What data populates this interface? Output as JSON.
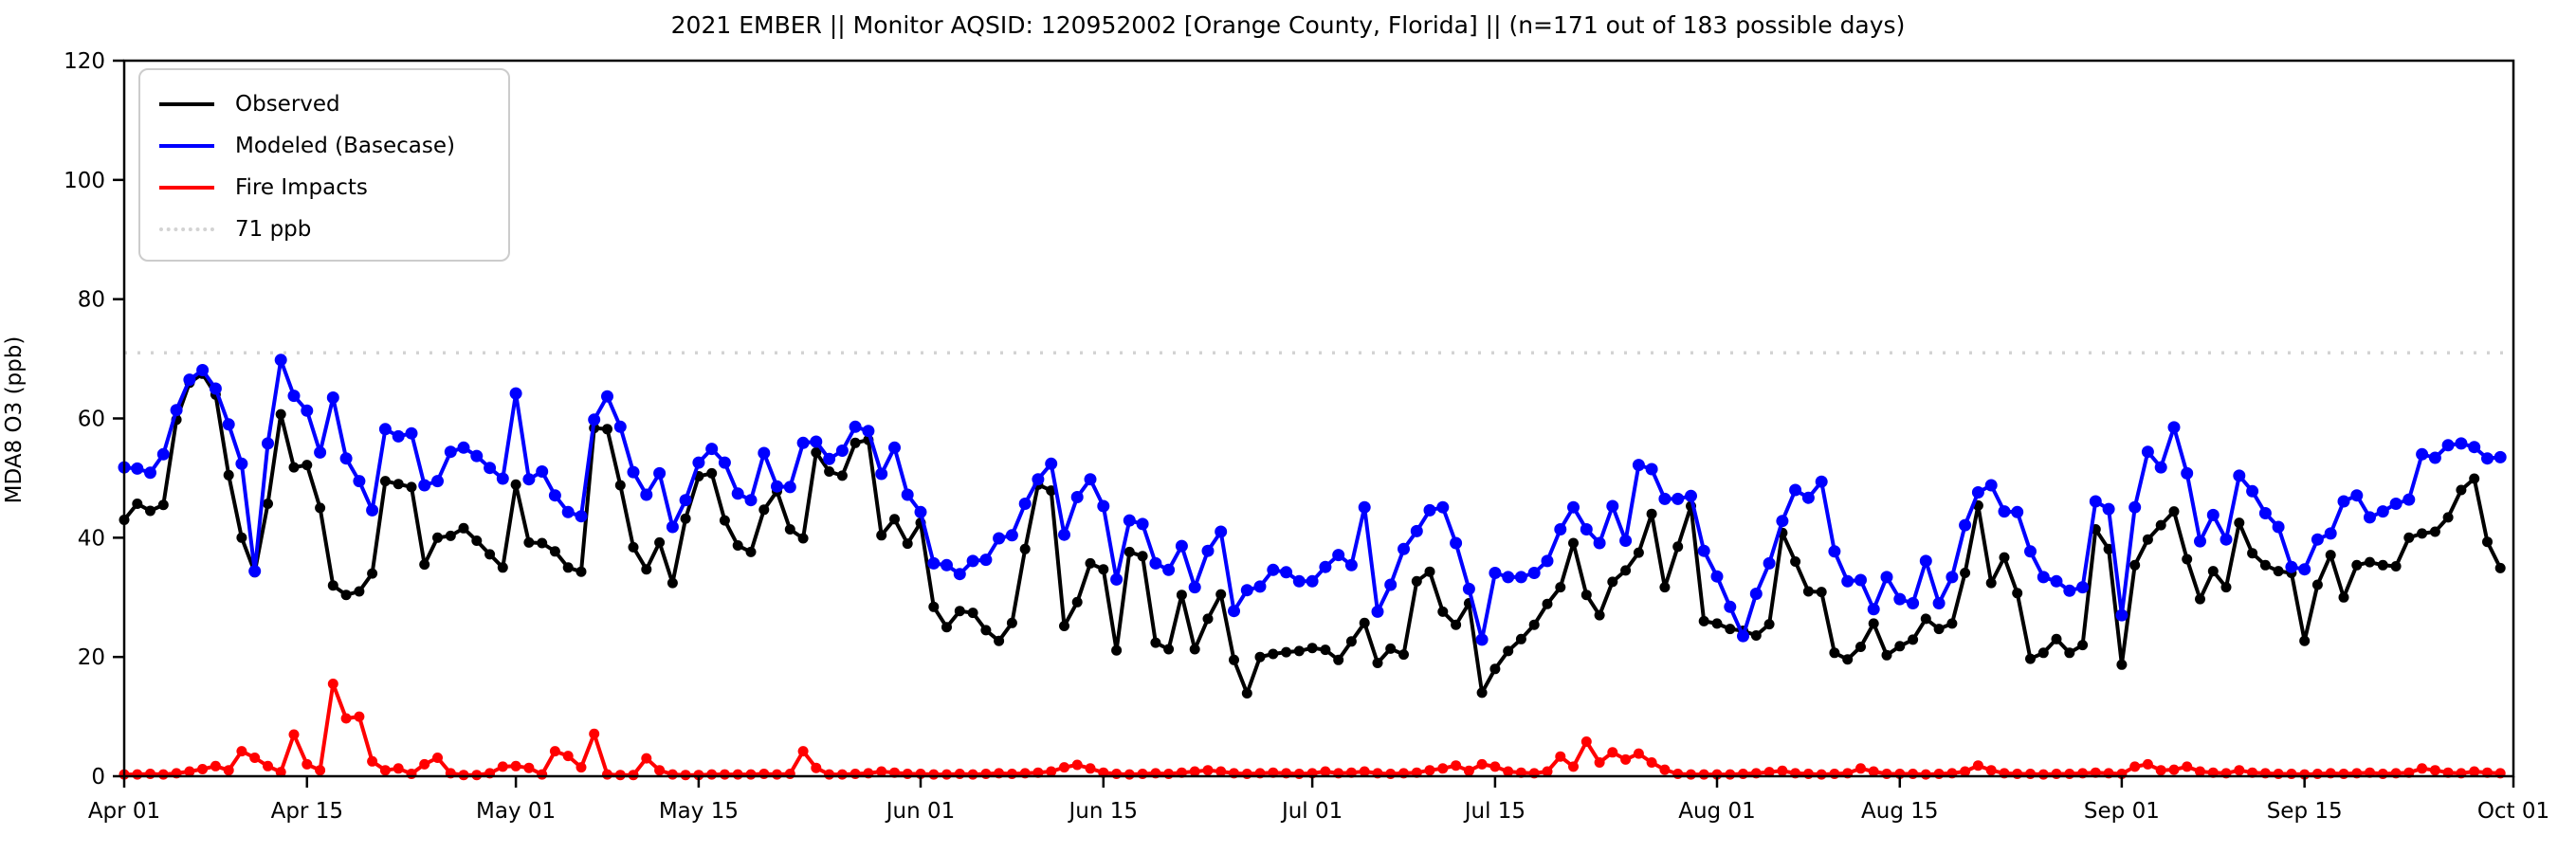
{
  "title": "2021 EMBER || Monitor AQSID: 120952002 [Orange County, Florida] || (n=171 out of 183 possible days)",
  "chart_data": {
    "type": "line",
    "title": "2021 EMBER || Monitor AQSID: 120952002 [Orange County, Florida] || (n=171 out of 183 possible days)",
    "xlabel": "",
    "ylabel": "MDA8 O3 (ppb)",
    "ylim": [
      0,
      120
    ],
    "yticks": [
      0,
      20,
      40,
      60,
      80,
      100,
      120
    ],
    "x_max": 183,
    "x_start_label": "Apr 01",
    "x_end_label": "Oct 01",
    "xtick_days": [
      0,
      14,
      30,
      44,
      61,
      75,
      91,
      105,
      122,
      136,
      153,
      167,
      183
    ],
    "xtick_labels": [
      "Apr 01",
      "Apr 15",
      "May 01",
      "May 15",
      "Jun 01",
      "Jun 15",
      "Jul 01",
      "Jul 15",
      "Aug 01",
      "Aug 15",
      "Sep 01",
      "Sep 15",
      "Oct 01"
    ],
    "grid": false,
    "reference_line": {
      "label": "71 ppb",
      "value": 71,
      "color": "#d3d3d3",
      "style": "dotted"
    },
    "legend": {
      "position": "upper-left",
      "entries": [
        {
          "label": "Observed",
          "color": "#000000",
          "style": "solid"
        },
        {
          "label": "Modeled (Basecase)",
          "color": "#0000ff",
          "style": "solid"
        },
        {
          "label": "Fire Impacts",
          "color": "#ff0000",
          "style": "solid"
        },
        {
          "label": "71 ppb",
          "color": "#d3d3d3",
          "style": "dotted"
        }
      ]
    },
    "series": [
      {
        "name": "Observed",
        "color": "#000000",
        "marker": "circle",
        "marker_r": 5.5,
        "values": [
          43.0,
          45.7,
          44.5,
          45.5,
          59.8,
          66.0,
          67.5,
          64.0,
          50.5,
          40.0,
          34.2,
          45.7,
          60.7,
          51.8,
          52.2,
          45.0,
          32.0,
          30.4,
          31.0,
          34.0,
          49.5,
          49.0,
          48.5,
          35.5,
          40.0,
          40.3,
          41.6,
          39.5,
          37.2,
          35.0,
          48.9,
          39.2,
          39.1,
          37.7,
          35.0,
          34.3,
          58.4,
          58.2,
          48.8,
          38.4,
          34.7,
          39.2,
          32.4,
          43.2,
          50.3,
          50.8,
          42.9,
          38.7,
          37.6,
          44.7,
          47.8,
          41.4,
          39.9,
          54.3,
          51.1,
          50.4,
          55.9,
          56.4,
          40.4,
          43.1,
          39.0,
          42.5,
          28.4,
          25.0,
          27.7,
          27.4,
          24.5,
          22.7,
          25.7,
          38.1,
          48.9,
          47.9,
          25.2,
          29.2,
          35.7,
          34.7,
          21.1,
          37.6,
          36.9,
          22.4,
          21.3,
          30.4,
          21.3,
          26.4,
          30.5,
          19.5,
          13.9,
          20.0,
          20.5,
          20.8,
          21.0,
          21.5,
          21.2,
          19.5,
          22.6,
          25.7,
          19.0,
          21.4,
          20.4,
          32.7,
          34.3,
          27.6,
          25.4,
          29.0,
          14.0,
          18.0,
          21.0,
          23.0,
          25.4,
          28.9,
          31.7,
          39.1,
          30.4,
          27.0,
          32.6,
          34.5,
          37.5,
          44.0,
          31.7,
          38.5,
          45.3,
          26.0,
          25.6,
          24.7,
          24.4,
          23.6,
          25.5,
          40.8,
          36.0,
          31.0,
          30.9,
          20.7,
          19.6,
          21.7,
          25.6,
          20.3,
          21.8,
          22.9,
          26.4,
          24.7,
          25.6,
          34.1,
          45.4,
          32.4,
          36.7,
          30.7,
          19.7,
          20.7,
          23.0,
          20.7,
          22.0,
          41.4,
          38.1,
          18.7,
          35.4,
          39.7,
          42.1,
          44.4,
          36.4,
          29.7,
          34.4,
          31.7,
          42.5,
          37.4,
          35.4,
          34.4,
          34.1,
          22.7,
          32.1,
          37.1,
          30.0,
          35.4,
          35.9,
          35.4,
          35.2,
          40.0,
          40.7,
          41.0,
          43.4,
          48.0,
          49.9,
          39.3,
          34.9
        ]
      },
      {
        "name": "Modeled (Basecase)",
        "color": "#0000ff",
        "marker": "circle",
        "marker_r": 6.5,
        "values": [
          51.8,
          51.6,
          50.9,
          54.0,
          61.4,
          66.5,
          68.1,
          65.0,
          59.0,
          52.4,
          34.4,
          55.8,
          69.8,
          63.8,
          61.3,
          54.3,
          63.5,
          53.3,
          49.5,
          44.6,
          58.2,
          57.0,
          57.5,
          48.8,
          49.5,
          54.4,
          55.1,
          53.7,
          51.7,
          49.9,
          64.2,
          49.8,
          51.1,
          47.1,
          44.3,
          43.6,
          59.8,
          63.7,
          58.6,
          51.0,
          47.2,
          50.8,
          41.8,
          46.3,
          52.6,
          54.9,
          52.6,
          47.4,
          46.3,
          54.2,
          48.6,
          48.5,
          55.9,
          56.1,
          53.2,
          54.6,
          58.6,
          57.9,
          50.7,
          55.1,
          47.2,
          44.3,
          35.7,
          35.4,
          33.9,
          36.1,
          36.3,
          39.9,
          40.4,
          45.7,
          49.8,
          52.4,
          40.5,
          46.8,
          49.8,
          45.3,
          33.0,
          42.9,
          42.3,
          35.7,
          34.6,
          38.6,
          31.7,
          37.8,
          41.0,
          27.7,
          31.2,
          31.8,
          34.6,
          34.2,
          32.7,
          32.7,
          35.1,
          37.1,
          35.4,
          45.1,
          27.6,
          32.1,
          38.1,
          41.1,
          44.6,
          45.1,
          39.1,
          31.4,
          22.9,
          34.1,
          33.4,
          33.4,
          34.1,
          36.1,
          41.4,
          45.1,
          41.4,
          39.1,
          45.3,
          39.5,
          52.2,
          51.5,
          46.5,
          46.5,
          47.0,
          37.8,
          33.5,
          28.4,
          23.5,
          30.6,
          35.7,
          42.8,
          48.0,
          46.7,
          49.4,
          37.7,
          32.7,
          32.9,
          28.0,
          33.4,
          29.7,
          29.0,
          36.1,
          29.0,
          33.4,
          42.1,
          47.6,
          48.8,
          44.4,
          44.3,
          37.7,
          33.4,
          32.7,
          31.1,
          31.7,
          46.1,
          44.8,
          27.0,
          45.1,
          54.4,
          51.8,
          58.5,
          50.8,
          39.4,
          43.8,
          39.7,
          50.4,
          47.8,
          44.1,
          41.8,
          35.1,
          34.7,
          39.7,
          40.7,
          46.1,
          47.1,
          43.4,
          44.4,
          45.7,
          46.4,
          54.0,
          53.4,
          55.5,
          55.8,
          55.2,
          53.3,
          53.5
        ]
      },
      {
        "name": "Fire Impacts",
        "color": "#ff0000",
        "marker": "circle",
        "marker_r": 5.5,
        "values": [
          0.3,
          0.3,
          0.4,
          0.3,
          0.5,
          0.8,
          1.2,
          1.7,
          1.0,
          4.2,
          3.1,
          1.7,
          0.7,
          7.0,
          2.0,
          1.0,
          15.5,
          9.7,
          10.0,
          2.5,
          1.0,
          1.3,
          0.4,
          2.0,
          3.1,
          0.5,
          0.2,
          0.2,
          0.5,
          1.6,
          1.7,
          1.4,
          0.3,
          4.2,
          3.4,
          1.5,
          7.1,
          0.3,
          0.2,
          0.2,
          3.0,
          1.0,
          0.3,
          0.2,
          0.2,
          0.3,
          0.3,
          0.3,
          0.3,
          0.4,
          0.3,
          0.4,
          4.2,
          1.4,
          0.3,
          0.3,
          0.4,
          0.5,
          0.8,
          0.6,
          0.4,
          0.4,
          0.3,
          0.3,
          0.4,
          0.3,
          0.4,
          0.5,
          0.4,
          0.5,
          0.6,
          0.8,
          1.5,
          1.9,
          1.3,
          0.6,
          0.4,
          0.3,
          0.4,
          0.5,
          0.4,
          0.6,
          0.8,
          1.0,
          0.8,
          0.5,
          0.4,
          0.5,
          0.6,
          0.5,
          0.4,
          0.5,
          0.8,
          0.5,
          0.6,
          0.8,
          0.5,
          0.4,
          0.5,
          0.6,
          1.0,
          1.3,
          1.8,
          0.9,
          2.0,
          1.6,
          0.8,
          0.6,
          0.5,
          0.8,
          3.3,
          1.6,
          5.8,
          2.3,
          4.0,
          2.8,
          3.8,
          2.3,
          1.1,
          0.4,
          0.3,
          0.3,
          0.3,
          0.3,
          0.4,
          0.5,
          0.7,
          0.9,
          0.5,
          0.4,
          0.3,
          0.4,
          0.5,
          1.3,
          0.8,
          0.4,
          0.4,
          0.4,
          0.3,
          0.4,
          0.5,
          0.8,
          1.8,
          1.0,
          0.5,
          0.4,
          0.4,
          0.3,
          0.4,
          0.4,
          0.5,
          0.6,
          0.5,
          0.4,
          1.6,
          2.0,
          1.0,
          1.1,
          1.6,
          0.8,
          0.6,
          0.5,
          1.0,
          0.6,
          0.5,
          0.4,
          0.4,
          0.3,
          0.4,
          0.5,
          0.4,
          0.5,
          0.6,
          0.4,
          0.5,
          0.6,
          1.3,
          1.0,
          0.6,
          0.5,
          0.8,
          0.6,
          0.5
        ]
      }
    ]
  }
}
